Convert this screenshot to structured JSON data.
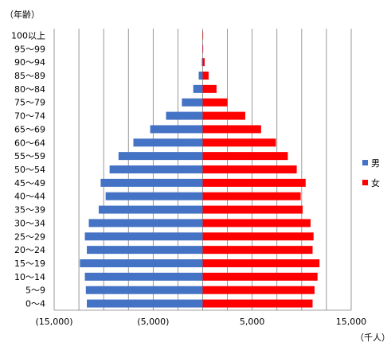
{
  "chart_data": {
    "type": "bar",
    "orientation": "horizontal",
    "layout": "population-pyramid",
    "ylabel": "（年齢）",
    "xlabel": "（千人）",
    "xlim": [
      -15000,
      15000
    ],
    "xticks": [
      -15000,
      -5000,
      5000,
      15000
    ],
    "xtick_labels": [
      "(15,000)",
      "(5,000)",
      "5,000",
      "15,000"
    ],
    "grid": true,
    "legend_position": "right",
    "categories": [
      "0～4",
      "5～9",
      "10～14",
      "15～19",
      "20～24",
      "25～29",
      "30～34",
      "35～39",
      "40～44",
      "45～49",
      "50～54",
      "55～59",
      "60～64",
      "65～69",
      "70～74",
      "75～79",
      "80～84",
      "85～89",
      "90～94",
      "95～99",
      "100以上"
    ],
    "series": [
      {
        "name": "男",
        "color": "#4472C4",
        "values": [
          -11700,
          -11800,
          -11900,
          -12400,
          -11700,
          -11900,
          -11500,
          -10500,
          -9800,
          -10300,
          -9400,
          -8500,
          -7000,
          -5300,
          -3700,
          -2100,
          -950,
          -400,
          -80,
          -20,
          -5
        ]
      },
      {
        "name": "女",
        "color": "#FF0000",
        "values": [
          11100,
          11300,
          11600,
          11800,
          11100,
          11200,
          10900,
          10100,
          9900,
          10400,
          9500,
          8600,
          7400,
          5900,
          4300,
          2500,
          1400,
          600,
          200,
          50,
          10
        ]
      }
    ]
  }
}
